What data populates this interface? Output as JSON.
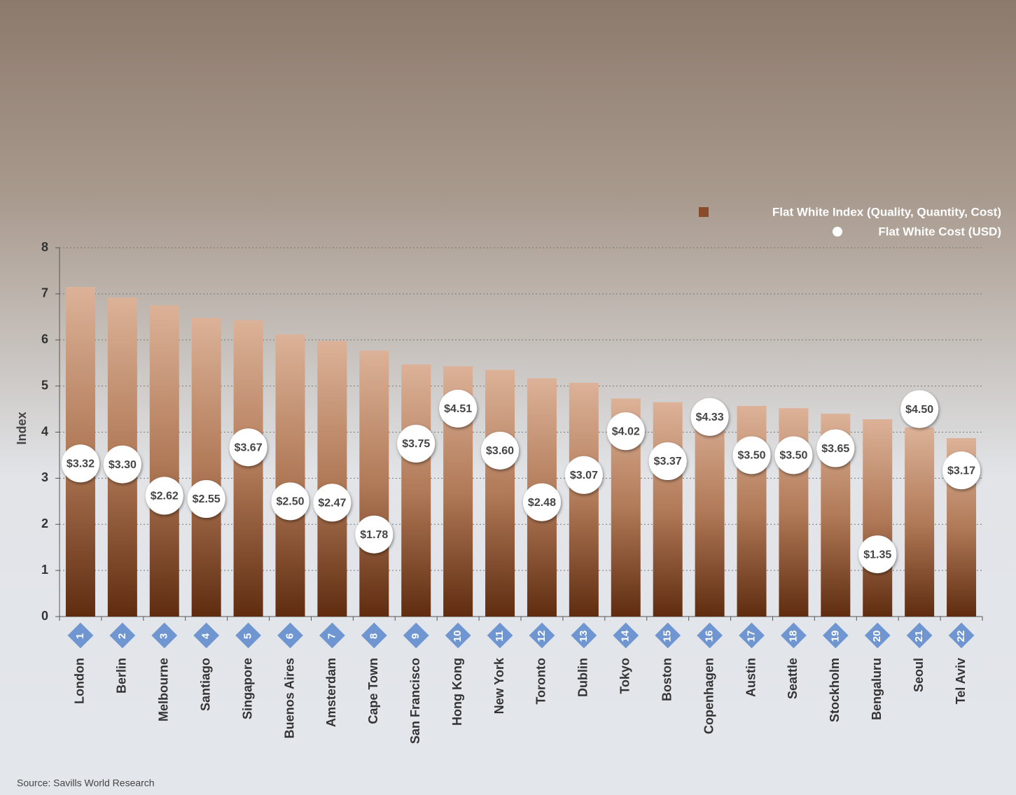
{
  "chart_data": {
    "type": "bar",
    "categories": [
      "London",
      "Berlin",
      "Melbourne",
      "Santiago",
      "Singapore",
      "Buenos Aires",
      "Amsterdam",
      "Cape Town",
      "San Francisco",
      "Hong Kong",
      "New York",
      "Toronto",
      "Dublin",
      "Tokyo",
      "Boston",
      "Copenhagen",
      "Austin",
      "Seattle",
      "Stockholm",
      "Bengaluru",
      "Seoul",
      "Tel Aviv"
    ],
    "ranks": [
      1,
      2,
      3,
      4,
      5,
      6,
      7,
      8,
      9,
      10,
      11,
      12,
      13,
      14,
      15,
      16,
      17,
      18,
      19,
      20,
      21,
      22
    ],
    "series": [
      {
        "name": "Flat White Index (Quality, Quantity, Cost)",
        "color": "#8a4b2a",
        "values": [
          7.15,
          6.92,
          6.75,
          6.48,
          6.43,
          6.12,
          5.98,
          5.77,
          5.47,
          5.43,
          5.35,
          5.17,
          5.07,
          4.73,
          4.65,
          4.6,
          4.57,
          4.52,
          4.4,
          4.28,
          4.1,
          3.87
        ]
      },
      {
        "name": "Flat White Cost (USD)",
        "color": "#ffffff",
        "values": [
          3.32,
          3.3,
          2.62,
          2.55,
          3.67,
          2.5,
          2.47,
          1.78,
          3.75,
          4.51,
          3.6,
          2.48,
          3.07,
          4.02,
          3.37,
          4.33,
          3.5,
          3.5,
          3.65,
          1.35,
          4.5,
          3.17
        ],
        "value_labels": [
          "$3.32",
          "$3.30",
          "$2.62",
          "$2.55",
          "$3.67",
          "$2.50",
          "$2.47",
          "$1.78",
          "$3.75",
          "$4.51",
          "$3.60",
          "$2.48",
          "$3.07",
          "$4.02",
          "$3.37",
          "$4.33",
          "$3.50",
          "$3.50",
          "$3.65",
          "$1.35",
          "$4.50",
          "$3.17"
        ]
      }
    ],
    "y_label": "Index",
    "ylim": [
      0,
      8
    ],
    "yticks": [
      0,
      1,
      2,
      3,
      4,
      5,
      6,
      7,
      8
    ],
    "grid": true,
    "rank_color": "#6f96d1",
    "source": "Source: Savills World Research"
  }
}
